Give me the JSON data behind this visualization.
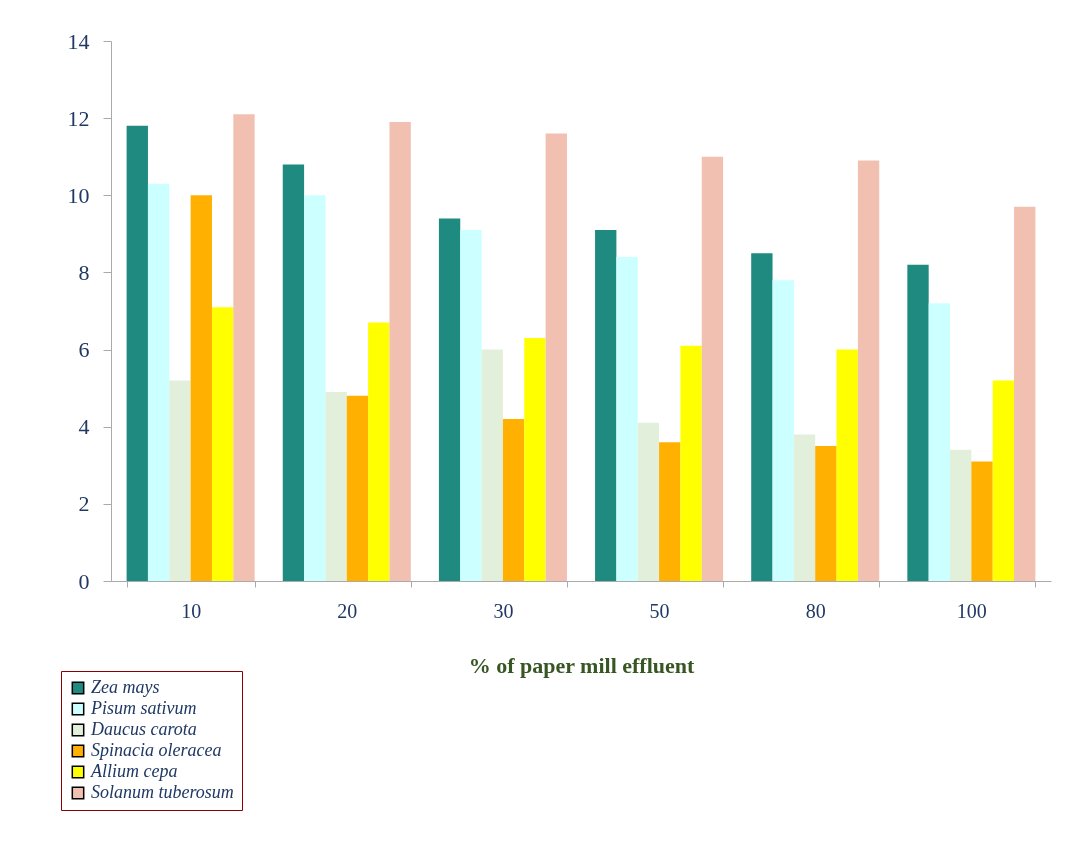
{
  "chart_data": {
    "type": "bar",
    "xlabel": "% of paper mill  effluent",
    "categories": [
      "10",
      "20",
      "30",
      "50",
      "80",
      "100"
    ],
    "series": [
      {
        "name": "Zea mays",
        "color": "#1f8a80",
        "values": [
          11.8,
          10.8,
          9.4,
          9.1,
          8.5,
          8.2
        ]
      },
      {
        "name": "Pisum sativum",
        "color": "#ccffff",
        "values": [
          10.3,
          10.0,
          9.1,
          8.4,
          7.8,
          7.2
        ]
      },
      {
        "name": "Daucus carota",
        "color": "#e2efda",
        "values": [
          5.2,
          4.9,
          6.0,
          4.1,
          3.8,
          3.4
        ]
      },
      {
        "name": "Spinacia oleracea",
        "color": "#ffb000",
        "values": [
          10.0,
          4.8,
          4.2,
          3.6,
          3.5,
          3.1
        ]
      },
      {
        "name": "Allium cepa",
        "color": "#ffff00",
        "values": [
          7.1,
          6.7,
          6.3,
          6.1,
          6.0,
          5.2
        ]
      },
      {
        "name": "Solanum tuberosum",
        "color": "#f2c0b0",
        "values": [
          12.1,
          11.9,
          11.6,
          11.0,
          10.9,
          9.7
        ]
      }
    ],
    "ylim": [
      0,
      14
    ],
    "yticks": [
      0,
      2,
      4,
      6,
      8,
      10,
      12,
      14
    ],
    "grid": false,
    "legend": "bottom left"
  }
}
